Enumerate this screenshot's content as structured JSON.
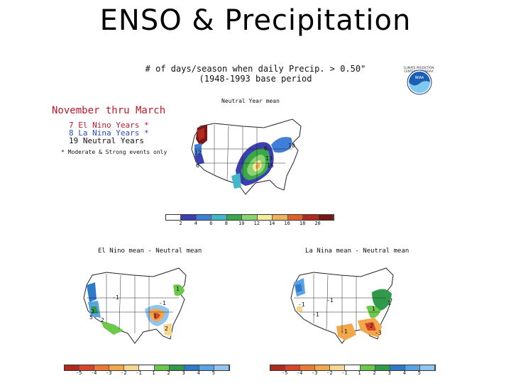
{
  "title": "ENSO & Precipitation",
  "header": {
    "line1": "# of days/season when daily Precip. > 0.50\"",
    "line2": "(1948-1993 base period",
    "agency_text": "CLIMATE PREDICTION CENTER/NCEP/NOAA",
    "logo_text": "NOAA"
  },
  "legend": {
    "season": "November thru March",
    "el_nino": "7 El Nino Years *",
    "la_nina": "8 La Nina Years *",
    "neutral": "19 Neutral Years",
    "footnote": "* Moderate & Strong events only"
  },
  "main_map": {
    "title": "Neutral Year mean",
    "labels": [
      "12",
      "6",
      "6",
      "10",
      "13",
      "16"
    ],
    "colorbar_ticks": [
      "2",
      "4",
      "6",
      "8",
      "10",
      "12",
      "14",
      "16",
      "18",
      "20"
    ],
    "colorbar_colors": [
      "#ffffff",
      "#3b3fb0",
      "#3f7fd8",
      "#40b8c8",
      "#3aa84a",
      "#8cd470",
      "#f2ee9a",
      "#f0b25c",
      "#e0602a",
      "#b02a20",
      "#7a1616"
    ]
  },
  "el_nino_map": {
    "title": "El Nino mean - Neutral mean",
    "labels": [
      "2",
      "-1",
      "2",
      "5",
      "1",
      "-1",
      "2",
      "1"
    ]
  },
  "la_nina_map": {
    "title": "La Nina mean - Neutral mean",
    "labels": [
      "-1",
      "-1",
      "-1",
      "1",
      "-1",
      "-2",
      "1",
      "-3"
    ]
  },
  "diff_colorbar": {
    "ticks": [
      "-5",
      "-4",
      "-3",
      "-2",
      "-1",
      "1",
      "2",
      "3",
      "4",
      "5"
    ],
    "colors": [
      "#b02a20",
      "#d8442a",
      "#ec7a34",
      "#f2a84a",
      "#f6d690",
      "#ffffff",
      "#6cc84a",
      "#2e9a4a",
      "#2e7ac8",
      "#5aa2e6",
      "#92c4f0"
    ]
  }
}
